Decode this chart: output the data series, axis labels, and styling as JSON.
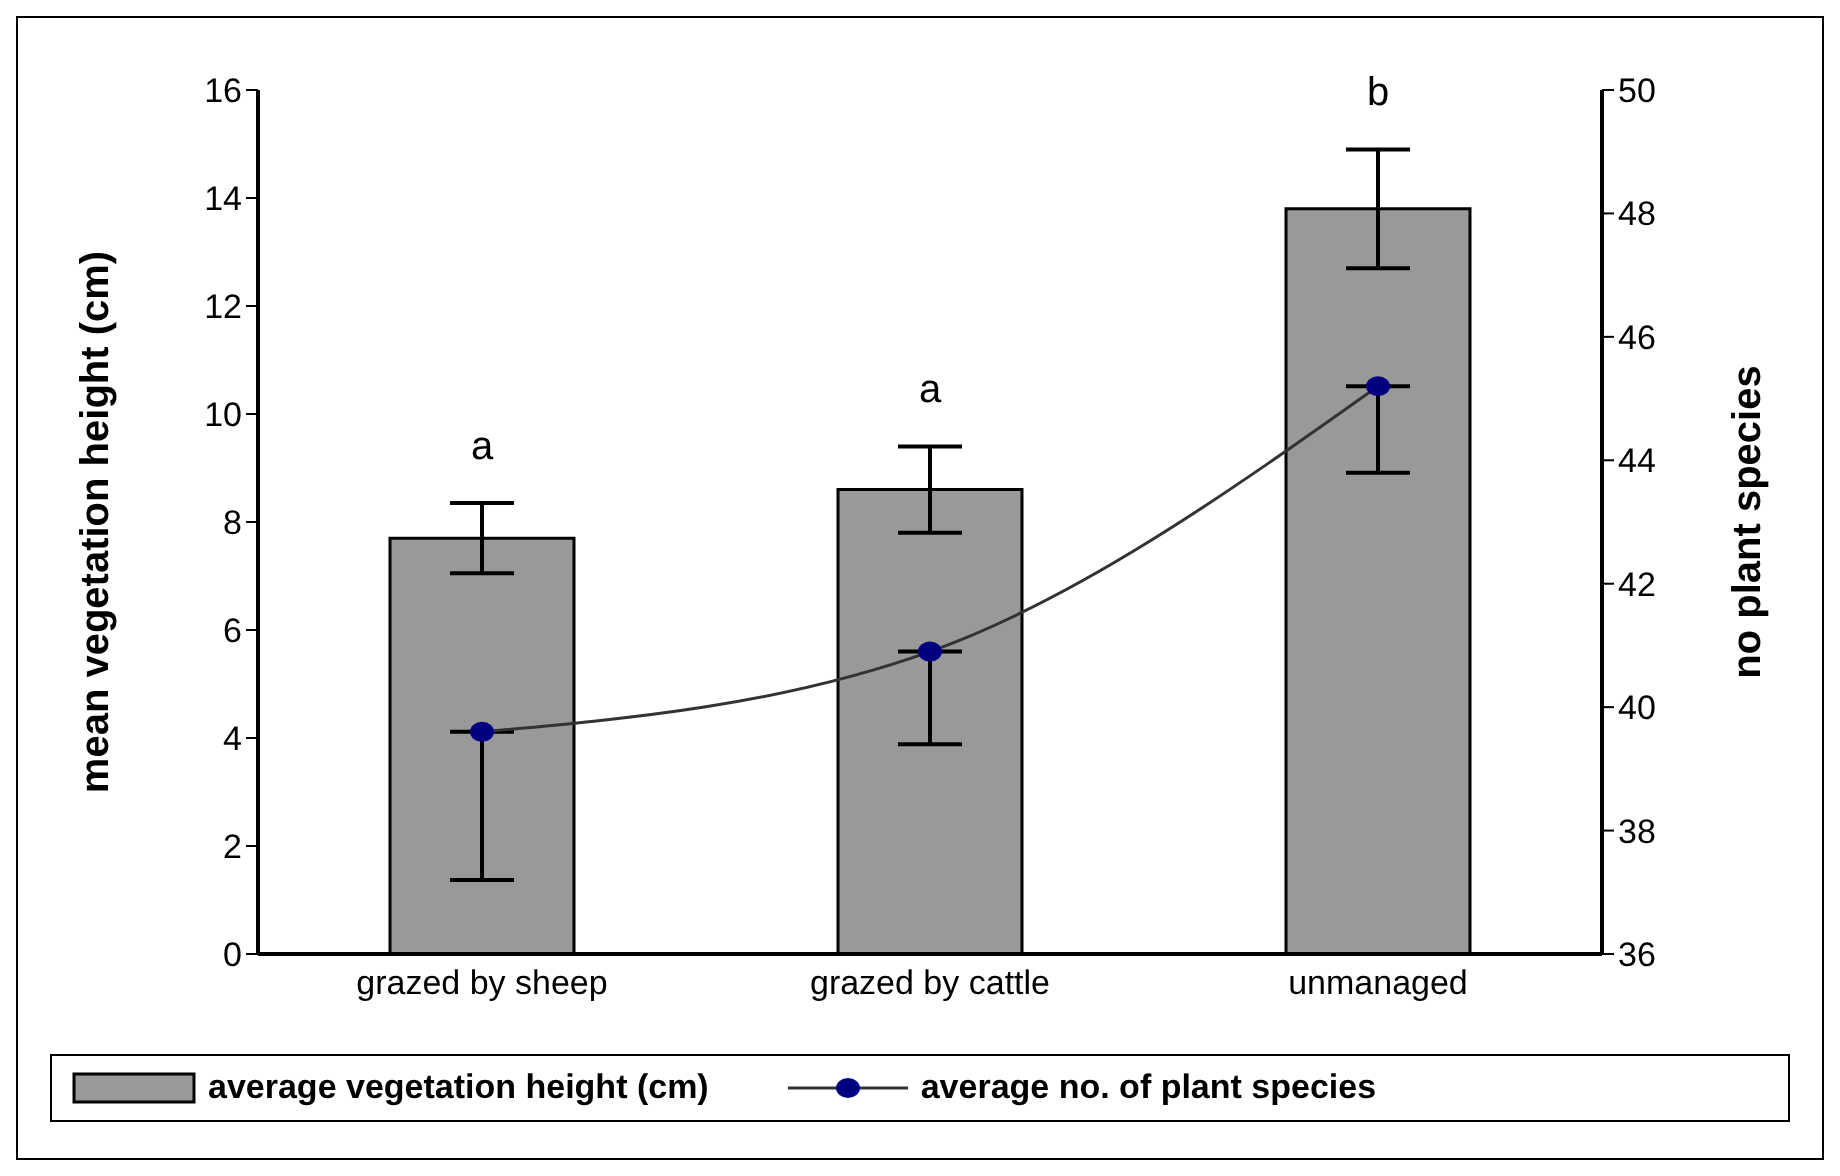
{
  "chart_data": {
    "type": "bar",
    "categories": [
      "grazed by sheep",
      "grazed by cattle",
      "unmanaged"
    ],
    "series": [
      {
        "name": "average vegetation height (cm)",
        "color": "#999999",
        "values": [
          7.7,
          8.6,
          13.8
        ],
        "errors": [
          0.65,
          0.8,
          1.1
        ]
      },
      {
        "name": "average no. of plant species",
        "type": "line",
        "axis": "y2",
        "color": "#000080",
        "values": [
          39.6,
          40.9,
          45.2
        ],
        "errors": [
          [
            37.2,
            39.6
          ],
          [
            39.4,
            40.9
          ],
          [
            43.8,
            45.2
          ]
        ],
        "marker": "circle"
      }
    ],
    "ylabel": "mean vegetation height (cm)",
    "y2label": "no plant species",
    "ylim": [
      0,
      16
    ],
    "yticks": [
      0,
      2,
      4,
      6,
      8,
      10,
      12,
      14,
      16
    ],
    "y2lim": [
      36,
      50
    ],
    "y2ticks": [
      36,
      38,
      40,
      42,
      44,
      46,
      48,
      50
    ],
    "annotations": [
      "a",
      "a",
      "b"
    ],
    "legend": "bottom"
  }
}
